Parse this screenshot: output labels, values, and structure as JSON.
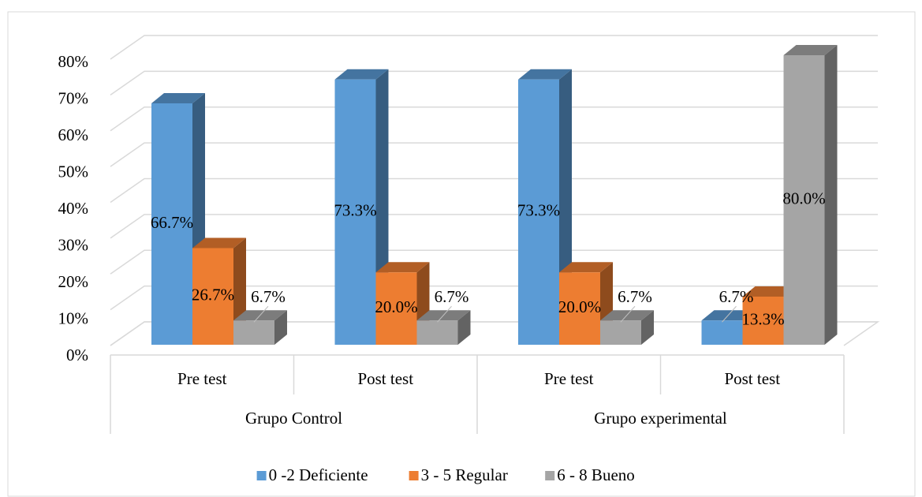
{
  "chart_data": {
    "type": "bar3d",
    "groups": [
      "Grupo Control",
      "Grupo experimental"
    ],
    "categories": [
      "Pre test",
      "Post test",
      "Pre test",
      "Post test"
    ],
    "series": [
      {
        "name": "0 -2 Deficiente",
        "color": "#5b9bd5",
        "values": [
          66.7,
          73.3,
          73.3,
          6.7
        ],
        "value_labels": [
          "66.7%",
          "73.3%",
          "73.3%",
          "6.7%"
        ]
      },
      {
        "name": "3 - 5 Regular",
        "color": "#ed7d31",
        "values": [
          26.7,
          20.0,
          20.0,
          13.3
        ],
        "value_labels": [
          "26.7%",
          "20.0%",
          "20.0%",
          "13.3%"
        ]
      },
      {
        "name": "6 - 8 Bueno",
        "color": "#a5a5a5",
        "values": [
          6.7,
          6.7,
          6.7,
          80.0
        ],
        "value_labels": [
          "6.7%",
          "6.7%",
          "6.7%",
          "80.0%"
        ]
      }
    ],
    "ylim": [
      0,
      80
    ],
    "yticks": [
      {
        "value": 0,
        "label": "0%"
      },
      {
        "value": 10,
        "label": "10%"
      },
      {
        "value": 20,
        "label": "20%"
      },
      {
        "value": 30,
        "label": "30%"
      },
      {
        "value": 40,
        "label": "40%"
      },
      {
        "value": 50,
        "label": "50%"
      },
      {
        "value": 60,
        "label": "60%"
      },
      {
        "value": 70,
        "label": "70%"
      },
      {
        "value": 80,
        "label": "80%"
      }
    ],
    "grid": true,
    "legend": "bottom"
  }
}
